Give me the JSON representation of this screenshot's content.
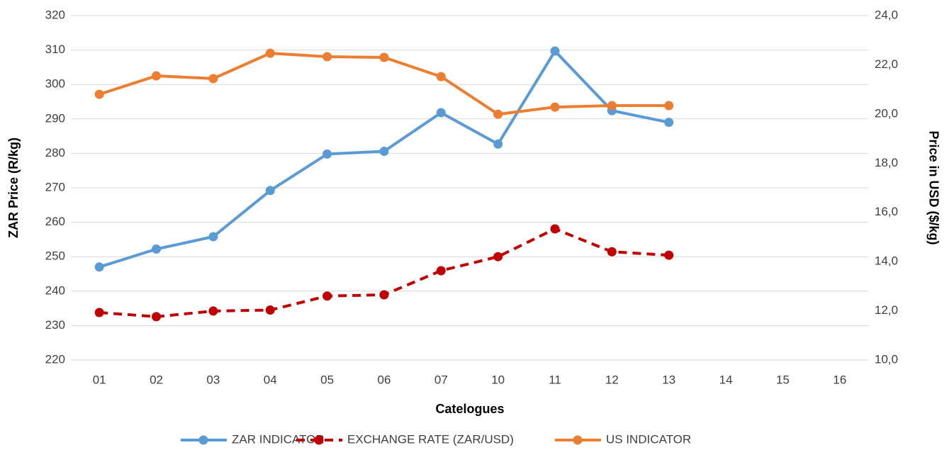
{
  "chart_data": {
    "type": "line",
    "x_label": "Catelogues",
    "y_label": "ZAR Price (R/kg)",
    "y2_label": "Price in USD ($/kg)",
    "categories": [
      "01",
      "02",
      "03",
      "04",
      "05",
      "06",
      "07",
      "10",
      "11",
      "12",
      "13",
      "14",
      "15",
      "16"
    ],
    "series": [
      {
        "name": "ZAR INDICATOR",
        "color": "#5b9bd5",
        "dashed": false,
        "values": [
          247,
          252.2,
          255.8,
          269.2,
          279.8,
          280.6,
          291.8,
          282.7,
          309.7,
          292.4,
          289,
          null,
          null,
          null
        ]
      },
      {
        "name": "EXCHANGE RATE (ZAR/USD)",
        "color": "#c00000",
        "dashed": true,
        "axis": "y2",
        "values": [
          11.93,
          11.76,
          11.99,
          12.03,
          12.6,
          12.65,
          13.63,
          14.2,
          15.33,
          14.4,
          14.26,
          null,
          null,
          null
        ]
      },
      {
        "name": "US INDICATOR",
        "color": "#ed7d31",
        "dashed": false,
        "axis": "y2",
        "values": [
          20.8,
          21.55,
          21.44,
          22.47,
          22.33,
          22.3,
          21.52,
          19.99,
          20.28,
          20.34,
          20.34,
          null,
          null,
          null
        ]
      }
    ],
    "ylim": [
      220,
      320
    ],
    "yticks": [
      220,
      230,
      240,
      250,
      260,
      270,
      280,
      290,
      300,
      310,
      320
    ],
    "y2lim": [
      10,
      24
    ],
    "y2ticks": [
      {
        "value": 10,
        "label": "10,0"
      },
      {
        "value": 12,
        "label": "12,0"
      },
      {
        "value": 14,
        "label": "14,0"
      },
      {
        "value": 16,
        "label": "16,0"
      },
      {
        "value": 18,
        "label": "18,0"
      },
      {
        "value": 20,
        "label": "20,0"
      },
      {
        "value": 22,
        "label": "22,0"
      },
      {
        "value": 24,
        "label": "24,0"
      }
    ],
    "grid": true,
    "legend": "bottom"
  }
}
